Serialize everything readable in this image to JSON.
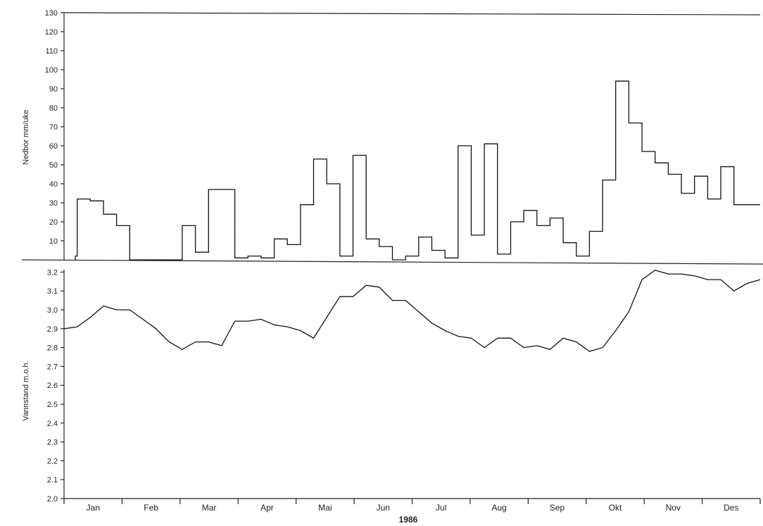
{
  "chart_data": [
    {
      "type": "line",
      "step": true,
      "ylabel": "Nedbor mm/uke",
      "ylim": [
        0,
        130
      ],
      "yticks": [
        10,
        20,
        30,
        40,
        50,
        60,
        70,
        80,
        90,
        100,
        110,
        120,
        130
      ],
      "grid": false,
      "xlim": [
        0,
        53
      ],
      "x": [
        0,
        1,
        2,
        3,
        4,
        5,
        6,
        7,
        8,
        9,
        10,
        11,
        12,
        13,
        14,
        15,
        16,
        17,
        18,
        19,
        20,
        21,
        22,
        23,
        24,
        25,
        26,
        27,
        28,
        29,
        30,
        31,
        32,
        33,
        34,
        35,
        36,
        37,
        38,
        39,
        40,
        41,
        42,
        43,
        44,
        45,
        46,
        47,
        48,
        49,
        50,
        51,
        52
      ],
      "series": [
        {
          "values": [
            2,
            32,
            31,
            24,
            18,
            0,
            0,
            0,
            0,
            18,
            4,
            37,
            37,
            1,
            2,
            1,
            11,
            8,
            29,
            53,
            40,
            2,
            55,
            11,
            7,
            0,
            2,
            12,
            5,
            1,
            60,
            13,
            61,
            3,
            20,
            26,
            18,
            22,
            9,
            2,
            15,
            42,
            94,
            72,
            57,
            51,
            45,
            35,
            44,
            32,
            49,
            29,
            29
          ]
        }
      ]
    },
    {
      "type": "line",
      "ylabel": "Vannstand m.o.h.",
      "xlabel": "1986",
      "ylim": [
        2.0,
        3.25
      ],
      "yticks": [
        2.0,
        2.1,
        2.2,
        2.3,
        2.4,
        2.5,
        2.6,
        2.7,
        2.8,
        2.9,
        3.0,
        3.1,
        3.2
      ],
      "ytick_labels": [
        "2.0",
        "2.1",
        "2.2",
        "2.3",
        "2.4",
        "2.5",
        "2.6",
        "2.7",
        "2.8",
        "2.9",
        "3.0",
        "3.1",
        "3.2"
      ],
      "grid": false,
      "categories": [
        "Jan",
        "Feb",
        "Mar",
        "Apr",
        "Mai",
        "Jun",
        "Jul",
        "Aug",
        "Sep",
        "Okt",
        "Nov",
        "Des"
      ],
      "xlim": [
        0,
        53
      ],
      "x": [
        0,
        1,
        2,
        3,
        4,
        5,
        6,
        7,
        8,
        9,
        10,
        11,
        12,
        13,
        14,
        15,
        16,
        17,
        18,
        19,
        20,
        21,
        22,
        23,
        24,
        25,
        26,
        27,
        28,
        29,
        30,
        31,
        32,
        33,
        34,
        35,
        36,
        37,
        38,
        39,
        40,
        41,
        42,
        43,
        44,
        45,
        46,
        47,
        48,
        49,
        50,
        51,
        52,
        53
      ],
      "series": [
        {
          "values": [
            2.9,
            2.91,
            2.96,
            3.02,
            3.0,
            3.0,
            2.95,
            2.9,
            2.83,
            2.79,
            2.83,
            2.83,
            2.81,
            2.94,
            2.94,
            2.95,
            2.92,
            2.91,
            2.89,
            2.85,
            2.96,
            3.07,
            3.07,
            3.13,
            3.12,
            3.05,
            3.05,
            2.99,
            2.93,
            2.89,
            2.86,
            2.85,
            2.8,
            2.85,
            2.85,
            2.8,
            2.81,
            2.79,
            2.85,
            2.83,
            2.78,
            2.8,
            2.89,
            2.99,
            3.16,
            3.21,
            3.19,
            3.19,
            3.18,
            3.16,
            3.16,
            3.1,
            3.14,
            3.16
          ]
        }
      ]
    }
  ]
}
